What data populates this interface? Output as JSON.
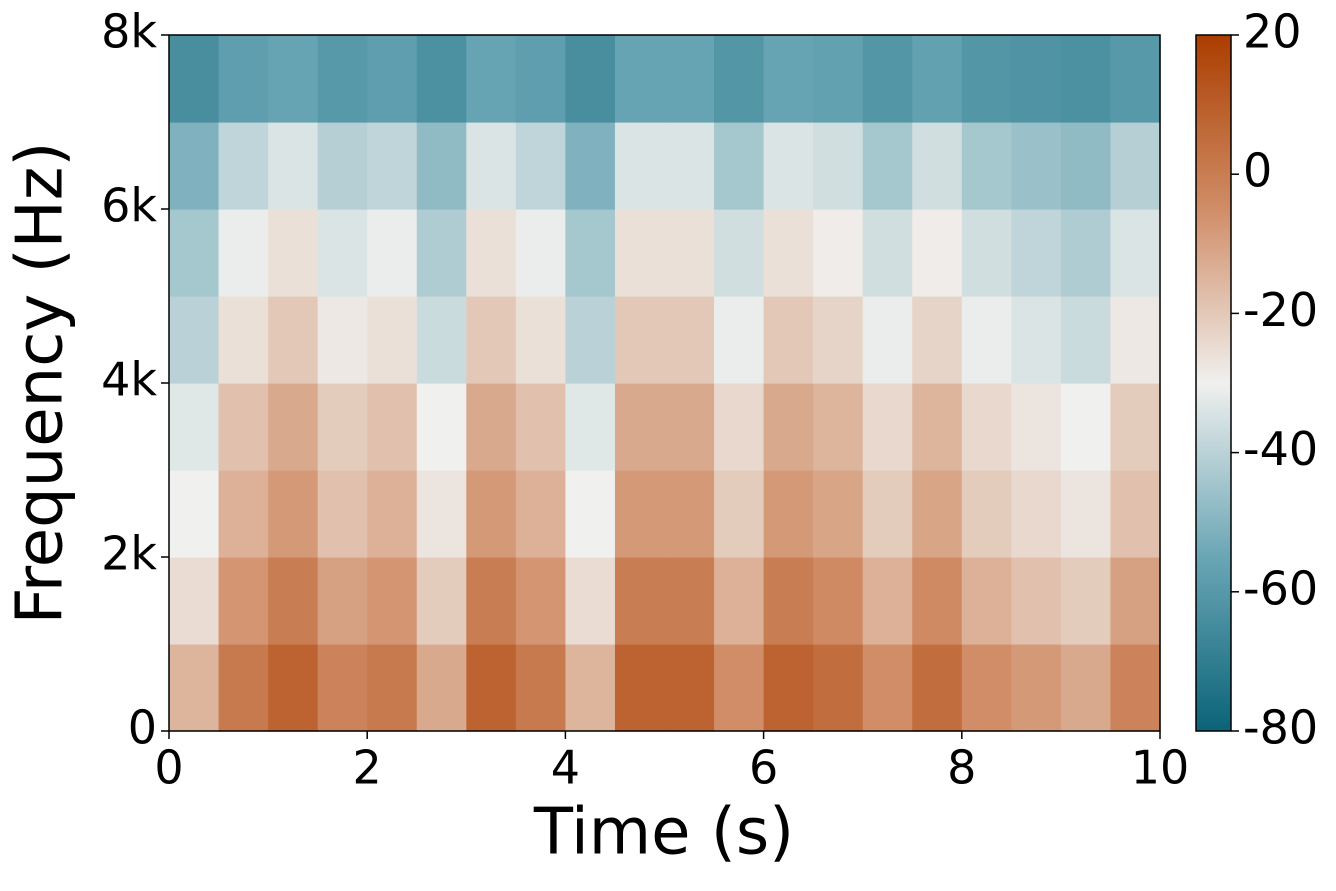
{
  "chart_data": {
    "type": "heatmap",
    "x_label": "Time (s)",
    "y_label": "Frequency (Hz)",
    "x": [
      0.25,
      0.75,
      1.25,
      1.75,
      2.25,
      2.75,
      3.25,
      3.75,
      4.25,
      4.75,
      5.25,
      5.75,
      6.25,
      6.75,
      7.25,
      7.75,
      8.25,
      8.75,
      9.25,
      9.75
    ],
    "y": [
      500,
      1500,
      2500,
      3500,
      4500,
      5500,
      6500,
      7500
    ],
    "z": [
      [
        -15,
        1,
        8,
        -2,
        1,
        -12,
        8,
        1,
        -15,
        8,
        8,
        -5,
        8,
        5,
        -5,
        5,
        -5,
        -8,
        -12,
        -2
      ],
      [
        -25,
        -7,
        0,
        -10,
        -7,
        -21,
        0,
        -7,
        -25,
        0,
        0,
        -14,
        0,
        -4,
        -14,
        -4,
        -14,
        -18,
        -21,
        -10
      ],
      [
        -30,
        -14,
        -8,
        -18,
        -14,
        -27,
        -8,
        -14,
        -30,
        -8,
        -8,
        -21,
        -8,
        -11,
        -21,
        -11,
        -21,
        -24,
        -27,
        -18
      ],
      [
        -33,
        -18,
        -12,
        -21,
        -18,
        -30,
        -12,
        -18,
        -33,
        -12,
        -12,
        -24,
        -12,
        -15,
        -24,
        -15,
        -24,
        -27,
        -30,
        -21
      ],
      [
        -40,
        -26,
        -20,
        -28,
        -26,
        -37,
        -20,
        -26,
        -40,
        -20,
        -20,
        -31,
        -20,
        -23,
        -31,
        -23,
        -31,
        -34,
        -37,
        -28
      ],
      [
        -44,
        -31,
        -26,
        -34,
        -31,
        -42,
        -26,
        -31,
        -44,
        -26,
        -26,
        -36,
        -26,
        -29,
        -36,
        -29,
        -36,
        -39,
        -42,
        -34
      ],
      [
        -51,
        -39,
        -34,
        -41,
        -39,
        -48,
        -34,
        -39,
        -51,
        -34,
        -34,
        -44,
        -34,
        -36,
        -44,
        -36,
        -44,
        -46,
        -48,
        -41
      ],
      [
        -64,
        -58,
        -56,
        -60,
        -58,
        -63,
        -56,
        -58,
        -64,
        -56,
        -56,
        -61,
        -56,
        -57,
        -61,
        -57,
        -61,
        -62,
        -63,
        -60
      ]
    ],
    "xlim": [
      0,
      10
    ],
    "xticks": [
      0,
      2,
      4,
      6,
      8,
      10
    ],
    "ylim": [
      0,
      8000
    ],
    "yticks": [
      0,
      {
        "value": 2000,
        "label": "2k"
      },
      {
        "value": 4000,
        "label": "4k"
      },
      {
        "value": 6000,
        "label": "6k"
      },
      {
        "value": 8000,
        "label": "8k"
      }
    ],
    "clim": [
      -80,
      20
    ],
    "colorbar_ticks": [
      -80,
      -60,
      -40,
      -20,
      0,
      20
    ],
    "colormap": [
      "#0b6378",
      "#6aa6b5",
      "#f0f0ee",
      "#d08d67",
      "#ab3d00"
    ]
  }
}
